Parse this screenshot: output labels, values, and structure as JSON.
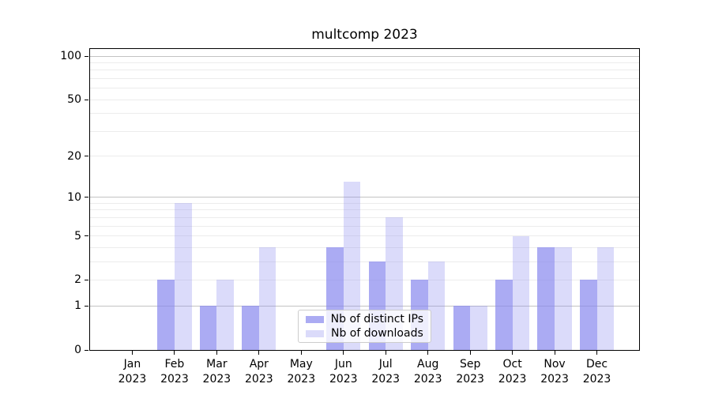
{
  "title": "multcomp 2023",
  "chart_data": {
    "type": "bar",
    "title": "multcomp 2023",
    "x_year": "2023",
    "categories": [
      "Jan",
      "Feb",
      "Mar",
      "Apr",
      "May",
      "Jun",
      "Jul",
      "Aug",
      "Sep",
      "Oct",
      "Nov",
      "Dec"
    ],
    "series": [
      {
        "key": "distinct-ips",
        "name": "Nb of distinct IPs",
        "base_color": "#8888ee",
        "alpha": 0.7,
        "effective_color": "#abaaf5",
        "values": [
          0,
          2,
          1,
          1,
          0,
          4,
          3,
          2,
          1,
          2,
          4,
          2
        ]
      },
      {
        "key": "downloads",
        "name": "Nb of downloads",
        "base_color": "#8888ee",
        "alpha": 0.3,
        "effective_color": "#dbdbfa",
        "values": [
          0,
          9,
          2,
          4,
          0,
          13,
          7,
          3,
          1,
          5,
          4,
          4
        ]
      }
    ],
    "y_axis": {
      "scale": "log1p",
      "ticks": [
        0,
        1,
        2,
        5,
        10,
        20,
        50,
        100
      ],
      "major_gridlines": [
        1,
        10,
        100
      ],
      "minor_gridlines": [
        2,
        3,
        4,
        5,
        6,
        7,
        8,
        9,
        20,
        30,
        40,
        50,
        60,
        70,
        80,
        90
      ],
      "min": 0,
      "max": 112
    },
    "legend": {
      "items": [
        "Nb of distinct IPs",
        "Nb of downloads"
      ],
      "position": "lower-center"
    },
    "grid": true
  },
  "colors": {
    "bar_base": "#8888ee",
    "major_grid": "#c3c3c3",
    "minor_grid": "#ececec",
    "axis": "#000000",
    "background": "#ffffff",
    "legend_border": "#cccccc"
  }
}
